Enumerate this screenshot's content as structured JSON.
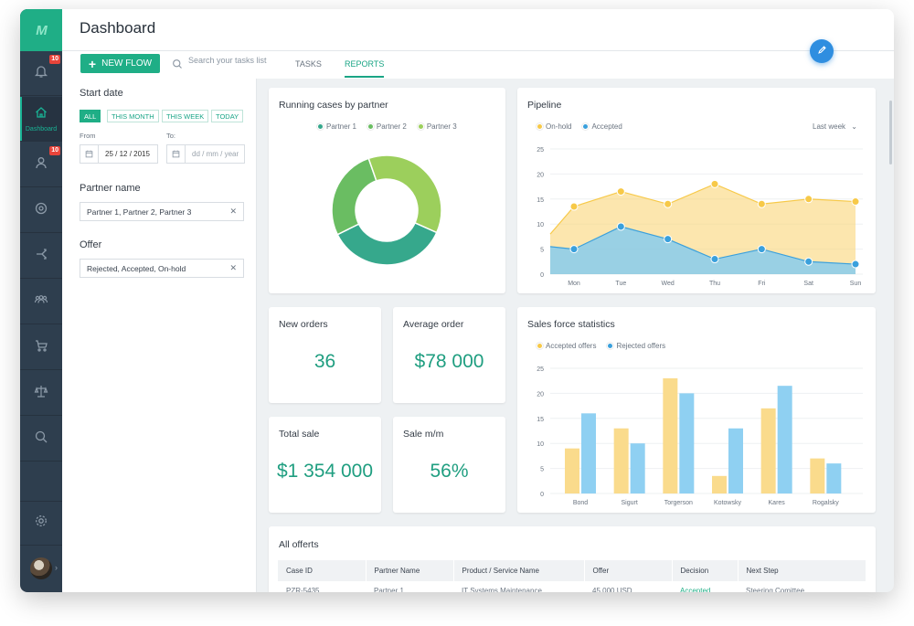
{
  "app": {
    "logo": "M",
    "title": "Dashboard",
    "notification_badge": "10",
    "users_badge": "10",
    "nav_dashboard_label": "Dashboard"
  },
  "toolbar": {
    "new_flow": "NEW FLOW",
    "search_placeholder": "Search your tasks list",
    "tab_tasks": "TASKS",
    "tab_reports": "REPORTS"
  },
  "filters": {
    "start_date_label": "Start date",
    "chips": [
      "ALL",
      "THIS MONTH",
      "THIS WEEK",
      "TODAY"
    ],
    "from_label": "From",
    "to_label": "To:",
    "from_value": "25 / 12 / 2015",
    "to_placeholder": "dd / mm / year",
    "partner_label": "Partner name",
    "partner_value": "Partner 1, Partner 2, Partner 3",
    "offer_label": "Offer",
    "offer_value": "Rejected, Accepted, On-hold"
  },
  "cards": {
    "running_title": "Running cases by partner",
    "pipeline_title": "Pipeline",
    "pipeline_range": "Last week",
    "new_orders_label": "New orders",
    "new_orders_value": "36",
    "avg_order_label": "Average order",
    "avg_order_value": "$78 000",
    "total_sale_label": "Total sale",
    "total_sale_value": "$1 354 000",
    "sale_mm_label": "Sale m/m",
    "sale_mm_value": "56%",
    "sales_force_title": "Sales force statistics",
    "offers_title": "All offerts"
  },
  "table": {
    "headers": [
      "Case ID",
      "Partner Name",
      "Product / Service Name",
      "Offer",
      "Decision",
      "Next Step"
    ],
    "row": [
      "PZR-5435",
      "Partner 1",
      "IT Systems Maintenance",
      "45 000 USD",
      "Accepted",
      "Steering Comittee"
    ]
  },
  "colors": {
    "accent": "#1fae86",
    "sidebar": "#2e3e4e",
    "partner1": "#36a88c",
    "partner2": "#6abd62",
    "partner3": "#9ccf5c",
    "onhold": "#f7c948",
    "accepted": "#3aa0dc",
    "accepted_bar": "#fadb8c",
    "rejected_bar": "#8fd0f2"
  },
  "chart_data": [
    {
      "type": "pie",
      "title": "Running cases by partner",
      "categories": [
        "Partner 1",
        "Partner 2",
        "Partner 3"
      ],
      "values": [
        36,
        27,
        37
      ]
    },
    {
      "type": "area",
      "title": "Pipeline",
      "categories": [
        "Mon",
        "Tue",
        "Wed",
        "Thu",
        "Fri",
        "Sat",
        "Sun"
      ],
      "series": [
        {
          "name": "On-hold",
          "values": [
            13.5,
            16.5,
            14,
            18,
            14,
            15,
            14.5
          ]
        },
        {
          "name": "Accepted",
          "values": [
            5,
            9.5,
            7,
            3,
            5,
            2.5,
            2
          ]
        }
      ],
      "ylim": [
        0,
        25
      ],
      "yticks": [
        0,
        5,
        10,
        15,
        20,
        25
      ]
    },
    {
      "type": "bar",
      "title": "Sales force statistics",
      "categories": [
        "Bond",
        "Sigurt",
        "Torgerson",
        "Kotowsky",
        "Kares",
        "Rogalsky"
      ],
      "series": [
        {
          "name": "Accepted offers",
          "values": [
            9,
            13,
            23,
            3.5,
            17,
            7
          ]
        },
        {
          "name": "Rejected offers",
          "values": [
            16,
            10,
            20,
            13,
            21.5,
            6
          ]
        }
      ],
      "ylim": [
        0,
        25
      ],
      "yticks": [
        0,
        5,
        10,
        15,
        20,
        25
      ]
    }
  ]
}
